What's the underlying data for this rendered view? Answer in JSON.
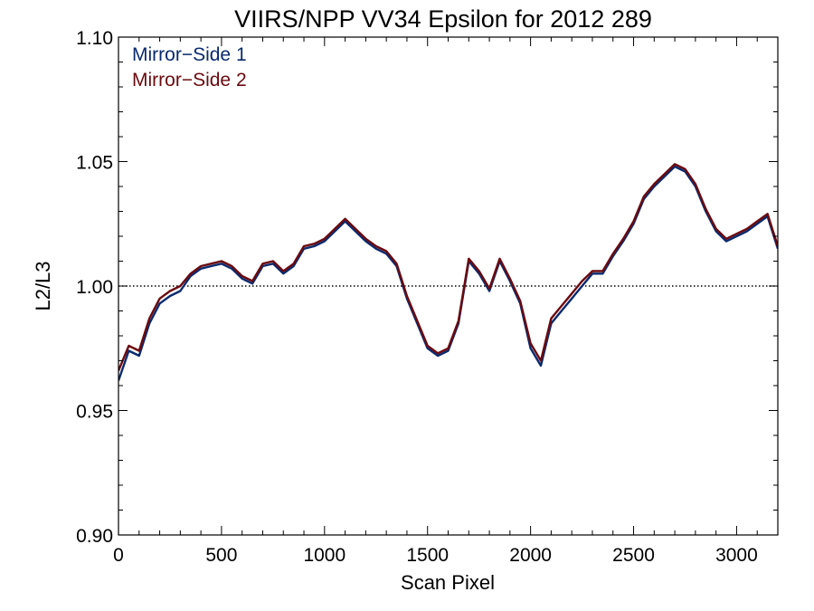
{
  "chart_data": {
    "type": "line",
    "title": "VIIRS/NPP VV34 Epsilon for 2012 289",
    "xlabel": "Scan Pixel",
    "ylabel": "L2/L3",
    "xlim": [
      0,
      3200
    ],
    "ylim": [
      0.9,
      1.1
    ],
    "x_ticks": [
      0,
      500,
      1000,
      1500,
      2000,
      2500,
      3000
    ],
    "x_tick_labels": [
      "0",
      "500",
      "1000",
      "1500",
      "2000",
      "2500",
      "3000"
    ],
    "y_ticks": [
      0.9,
      0.95,
      1.0,
      1.05,
      1.1
    ],
    "y_tick_labels": [
      "0.90",
      "0.95",
      "1.00",
      "1.05",
      "1.10"
    ],
    "reference_line": 1.0,
    "legend_position": "top-left",
    "grid": false,
    "series": [
      {
        "name": "Mirror−Side 1",
        "color": "#0a2a6e",
        "x": [
          0,
          50,
          100,
          150,
          200,
          250,
          300,
          350,
          400,
          450,
          500,
          550,
          600,
          650,
          700,
          750,
          800,
          850,
          900,
          950,
          1000,
          1050,
          1100,
          1150,
          1200,
          1250,
          1300,
          1350,
          1400,
          1450,
          1500,
          1550,
          1600,
          1650,
          1700,
          1750,
          1800,
          1850,
          1900,
          1950,
          2000,
          2050,
          2100,
          2150,
          2200,
          2250,
          2300,
          2350,
          2400,
          2450,
          2500,
          2550,
          2600,
          2650,
          2700,
          2750,
          2800,
          2850,
          2900,
          2950,
          3000,
          3050,
          3100,
          3150,
          3200
        ],
        "y": [
          0.962,
          0.974,
          0.972,
          0.985,
          0.993,
          0.996,
          0.998,
          1.004,
          1.007,
          1.008,
          1.009,
          1.007,
          1.003,
          1.001,
          1.008,
          1.009,
          1.005,
          1.008,
          1.015,
          1.016,
          1.018,
          1.022,
          1.026,
          1.022,
          1.018,
          1.015,
          1.013,
          1.008,
          0.995,
          0.985,
          0.975,
          0.972,
          0.974,
          0.985,
          1.01,
          1.005,
          0.998,
          1.01,
          1.002,
          0.993,
          0.975,
          0.968,
          0.985,
          0.99,
          0.995,
          1.0,
          1.005,
          1.005,
          1.012,
          1.018,
          1.025,
          1.035,
          1.04,
          1.044,
          1.048,
          1.046,
          1.04,
          1.03,
          1.022,
          1.018,
          1.02,
          1.022,
          1.025,
          1.028,
          1.015
        ]
      },
      {
        "name": "Mirror−Side 2",
        "color": "#6b0a0f",
        "x": [
          0,
          50,
          100,
          150,
          200,
          250,
          300,
          350,
          400,
          450,
          500,
          550,
          600,
          650,
          700,
          750,
          800,
          850,
          900,
          950,
          1000,
          1050,
          1100,
          1150,
          1200,
          1250,
          1300,
          1350,
          1400,
          1450,
          1500,
          1550,
          1600,
          1650,
          1700,
          1750,
          1800,
          1850,
          1900,
          1950,
          2000,
          2050,
          2100,
          2150,
          2200,
          2250,
          2300,
          2350,
          2400,
          2450,
          2500,
          2550,
          2600,
          2650,
          2700,
          2750,
          2800,
          2850,
          2900,
          2950,
          3000,
          3050,
          3100,
          3150,
          3200
        ],
        "y": [
          0.966,
          0.976,
          0.974,
          0.987,
          0.995,
          0.998,
          1.0,
          1.005,
          1.008,
          1.009,
          1.01,
          1.008,
          1.004,
          1.002,
          1.009,
          1.01,
          1.006,
          1.009,
          1.016,
          1.017,
          1.019,
          1.023,
          1.027,
          1.023,
          1.019,
          1.016,
          1.014,
          1.009,
          0.996,
          0.986,
          0.976,
          0.973,
          0.975,
          0.986,
          1.011,
          1.006,
          0.999,
          1.011,
          1.003,
          0.994,
          0.977,
          0.97,
          0.987,
          0.992,
          0.997,
          1.002,
          1.006,
          1.006,
          1.013,
          1.019,
          1.026,
          1.036,
          1.041,
          1.045,
          1.049,
          1.047,
          1.041,
          1.031,
          1.023,
          1.019,
          1.021,
          1.023,
          1.026,
          1.029,
          1.016
        ]
      }
    ]
  }
}
